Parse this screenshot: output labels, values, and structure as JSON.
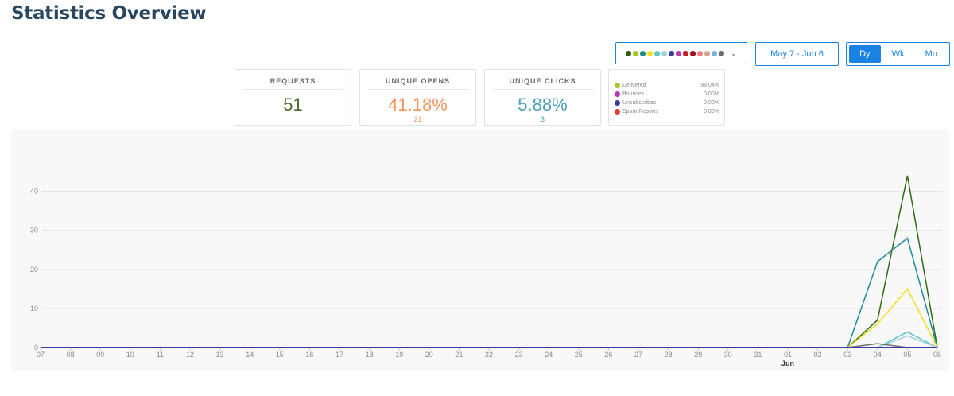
{
  "title": "Statistics Overview",
  "color_picker": {
    "colors": [
      "#2e5b12",
      "#a9c427",
      "#1f8a8f",
      "#f0e01d",
      "#5fc4c4",
      "#a3d4d9",
      "#3939a8",
      "#b63bb6",
      "#c21f2b",
      "#9b0f19",
      "#e88080",
      "#d3a395",
      "#74b6d8",
      "#6d6d6d"
    ]
  },
  "date_range": "May 7 - Jun 6",
  "periods": [
    {
      "label": "Dy",
      "active": true
    },
    {
      "label": "Wk",
      "active": false
    },
    {
      "label": "Mo",
      "active": false
    }
  ],
  "stats": {
    "requests": {
      "label": "REQUESTS",
      "value": "51",
      "color": "#4b6a2a"
    },
    "unique_opens": {
      "label": "UNIQUE OPENS",
      "value": "41.18%",
      "sub": "21",
      "color": "#f29661"
    },
    "unique_clicks": {
      "label": "UNIQUE CLICKS",
      "value": "5.88%",
      "sub": "3",
      "color": "#4ba0b8"
    }
  },
  "legend": [
    {
      "name": "Delivered",
      "value": "98.04%",
      "color": "#a9c427"
    },
    {
      "name": "Bounces",
      "value": "0.00%",
      "color": "#b63bb6"
    },
    {
      "name": "Unsubscribes",
      "value": "0.00%",
      "color": "#3939a8"
    },
    {
      "name": "Spam Reports",
      "value": "0.00%",
      "color": "#d9432b"
    }
  ],
  "chart_data": {
    "type": "line",
    "x": [
      "07",
      "08",
      "09",
      "10",
      "11",
      "12",
      "13",
      "14",
      "15",
      "16",
      "17",
      "18",
      "19",
      "20",
      "21",
      "22",
      "23",
      "24",
      "25",
      "26",
      "27",
      "28",
      "29",
      "30",
      "31",
      "01",
      "02",
      "03",
      "04",
      "05",
      "06"
    ],
    "x_secondary_label": {
      "at": "01",
      "text": "Jun"
    },
    "ylim": [
      0,
      45
    ],
    "y_ticks": [
      "0",
      "10",
      "20",
      "30",
      "40"
    ],
    "grid": true,
    "series": [
      {
        "color": "#2e6b12",
        "values": [
          0,
          0,
          0,
          0,
          0,
          0,
          0,
          0,
          0,
          0,
          0,
          0,
          0,
          0,
          0,
          0,
          0,
          0,
          0,
          0,
          0,
          0,
          0,
          0,
          0,
          0,
          0,
          0,
          7,
          44,
          0
        ]
      },
      {
        "color": "#1f8a99",
        "values": [
          0,
          0,
          0,
          0,
          0,
          0,
          0,
          0,
          0,
          0,
          0,
          0,
          0,
          0,
          0,
          0,
          0,
          0,
          0,
          0,
          0,
          0,
          0,
          0,
          0,
          0,
          0,
          0,
          22,
          28,
          0
        ]
      },
      {
        "color": "#f0e01d",
        "values": [
          0,
          0,
          0,
          0,
          0,
          0,
          0,
          0,
          0,
          0,
          0,
          0,
          0,
          0,
          0,
          0,
          0,
          0,
          0,
          0,
          0,
          0,
          0,
          0,
          0,
          0,
          0,
          0,
          6,
          15,
          0
        ]
      },
      {
        "color": "#5fc4c4",
        "values": [
          0,
          0,
          0,
          0,
          0,
          0,
          0,
          0,
          0,
          0,
          0,
          0,
          0,
          0,
          0,
          0,
          0,
          0,
          0,
          0,
          0,
          0,
          0,
          0,
          0,
          0,
          0,
          0,
          0,
          4,
          0
        ]
      },
      {
        "color": "#a3d4d9",
        "values": [
          0,
          0,
          0,
          0,
          0,
          0,
          0,
          0,
          0,
          0,
          0,
          0,
          0,
          0,
          0,
          0,
          0,
          0,
          0,
          0,
          0,
          0,
          0,
          0,
          0,
          0,
          0,
          0,
          0,
          3,
          0
        ]
      },
      {
        "color": "#6d6d6d",
        "values": [
          0,
          0,
          0,
          0,
          0,
          0,
          0,
          0,
          0,
          0,
          0,
          0,
          0,
          0,
          0,
          0,
          0,
          0,
          0,
          0,
          0,
          0,
          0,
          0,
          0,
          0,
          0,
          0,
          1,
          0,
          0
        ]
      },
      {
        "color": "#3939a8",
        "values": [
          0,
          0,
          0,
          0,
          0,
          0,
          0,
          0,
          0,
          0,
          0,
          0,
          0,
          0,
          0,
          0,
          0,
          0,
          0,
          0,
          0,
          0,
          0,
          0,
          0,
          0,
          0,
          0,
          0,
          0,
          0
        ]
      }
    ]
  }
}
